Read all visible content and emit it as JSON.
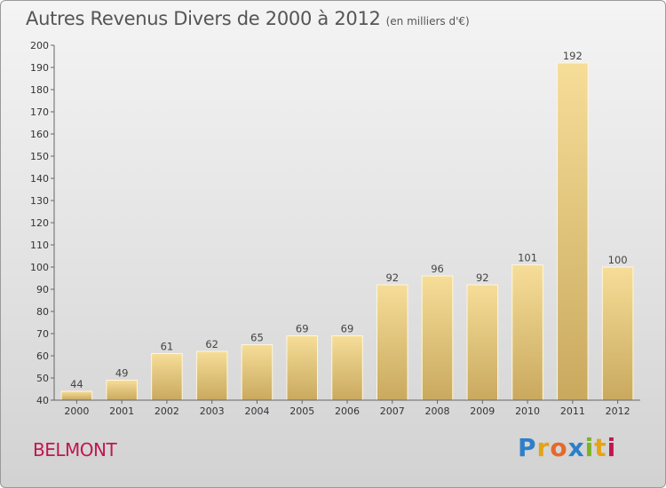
{
  "header": {
    "title": "Autres Revenus Divers de 2000 à 2012",
    "subtitle": "(en milliers d'€)"
  },
  "footer": {
    "commune": "BELMONT",
    "logo": {
      "letters": [
        "P",
        "r",
        "o",
        "x",
        "i",
        "t",
        "i"
      ],
      "colors": [
        "#2e7fc8",
        "#e4a414",
        "#e46a2c",
        "#2e7fc8",
        "#7bb324",
        "#e4a414",
        "#c0174e"
      ]
    }
  },
  "chart_data": {
    "type": "bar",
    "title": "Autres Revenus Divers de 2000 à 2012",
    "subtitle": "(en milliers d'€)",
    "categories": [
      "2000",
      "2001",
      "2002",
      "2003",
      "2004",
      "2005",
      "2006",
      "2007",
      "2008",
      "2009",
      "2010",
      "2011",
      "2012"
    ],
    "values": [
      44,
      49,
      61,
      62,
      65,
      69,
      69,
      92,
      96,
      92,
      101,
      192,
      100
    ],
    "data_labels": [
      "44",
      "49",
      "61",
      "62",
      "65",
      "69",
      "69",
      "92",
      "96",
      "92",
      "101",
      "192",
      "100"
    ],
    "ylim": [
      40,
      200
    ],
    "yticks": [
      40,
      50,
      60,
      70,
      80,
      90,
      100,
      110,
      120,
      130,
      140,
      150,
      160,
      170,
      180,
      190,
      200
    ],
    "grid": false,
    "bar_color": "#e8c97a"
  }
}
